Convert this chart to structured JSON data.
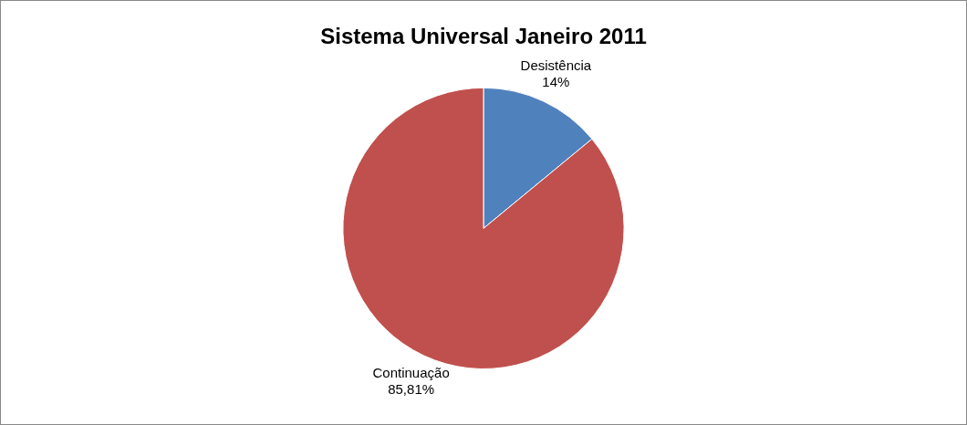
{
  "chart_data": {
    "type": "pie",
    "title": "Sistema Universal Janeiro 2011",
    "categories": [
      "Desistência",
      "Continuação"
    ],
    "values": [
      14,
      85.81
    ],
    "value_labels": [
      "14%",
      "85,81%"
    ],
    "colors": [
      "#4f81bd",
      "#c0504d"
    ],
    "legend": false
  }
}
